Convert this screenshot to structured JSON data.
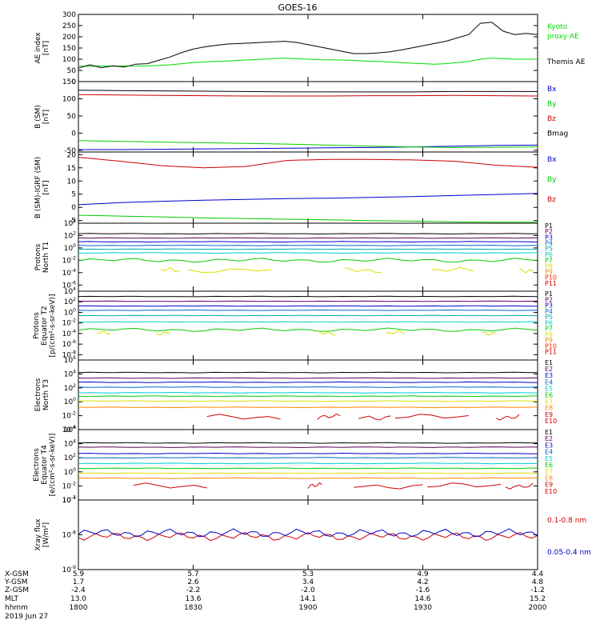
{
  "title": "GOES-16",
  "x_ticks": [
    "1800",
    "1830",
    "1900",
    "1930",
    "2000"
  ],
  "orbit_table": {
    "row_labels": [
      "X-GSM",
      "Y-GSM",
      "Z-GSM",
      "MLT",
      "hhmm",
      "2019 Jun 27"
    ],
    "columns": [
      [
        "5.9",
        "1.7",
        "-2.4",
        "13.0",
        "1800"
      ],
      [
        "5.7",
        "2.6",
        "-2.2",
        "13.6",
        "1830"
      ],
      [
        "5.3",
        "3.4",
        "-2.0",
        "14.1",
        "1900"
      ],
      [
        "4.9",
        "4.2",
        "-1.6",
        "14.6",
        "1930"
      ],
      [
        "4.4",
        "4.8",
        "-1.2",
        "15.2",
        "2000"
      ]
    ]
  },
  "chart_data": [
    {
      "type": "line",
      "ylabel": [
        "AE index",
        "[nT]"
      ],
      "ylim": [
        0,
        300
      ],
      "yticks": [
        "300",
        "250",
        "200",
        "150",
        "100",
        "50",
        "0"
      ],
      "x": [
        1800,
        1803,
        1806,
        1809,
        1812,
        1815,
        1818,
        1821,
        1824,
        1827,
        1830,
        1833,
        1836,
        1839,
        1842,
        1845,
        1848,
        1851,
        1854,
        1857,
        1900,
        1903,
        1906,
        1909,
        1912,
        1915,
        1918,
        1921,
        1924,
        1927,
        1930,
        1933,
        1936,
        1939,
        1942,
        1945,
        1948,
        1951,
        1954,
        1957,
        2000
      ],
      "series": [
        {
          "name": "Kyoto proxy AE",
          "color": "#00dd00",
          "values": [
            70,
            68,
            70,
            69,
            70,
            69,
            70,
            72,
            75,
            80,
            85,
            88,
            90,
            92,
            95,
            97,
            100,
            103,
            105,
            102,
            100,
            98,
            97,
            96,
            95,
            92,
            90,
            88,
            85,
            82,
            80,
            78,
            80,
            85,
            90,
            100,
            105,
            103,
            100,
            100,
            100
          ]
        },
        {
          "name": "Themis AE",
          "color": "#000000",
          "values": [
            60,
            75,
            62,
            70,
            65,
            78,
            80,
            95,
            110,
            130,
            145,
            155,
            162,
            168,
            170,
            172,
            175,
            178,
            180,
            175,
            165,
            155,
            145,
            135,
            125,
            125,
            128,
            132,
            140,
            150,
            160,
            170,
            180,
            195,
            210,
            260,
            265,
            225,
            210,
            215,
            210
          ]
        }
      ],
      "legend": [
        {
          "text": "Kyoto",
          "color": "#00dd00"
        },
        {
          "text": "proxy AE",
          "color": "#00dd00"
        },
        {
          "text": "Themis AE",
          "color": "#000000"
        }
      ]
    },
    {
      "type": "line",
      "ylabel": [
        "B (SM)",
        "[nT]"
      ],
      "ylim": [
        -55,
        150
      ],
      "yticks": [
        "150",
        "100",
        "50",
        "0",
        "-50"
      ],
      "series": [
        {
          "name": "Bx",
          "color": "#0000cc",
          "values": [
            -48,
            -48,
            -47,
            -46,
            -45,
            -44,
            -43,
            -42,
            -40,
            -38,
            -36,
            -35
          ]
        },
        {
          "name": "By",
          "color": "#00cc00",
          "values": [
            -22,
            -24,
            -26,
            -28,
            -30,
            -32,
            -35,
            -38,
            -40,
            -42,
            -41,
            -40
          ]
        },
        {
          "name": "Bz",
          "color": "#cc0000",
          "values": [
            112,
            111,
            110,
            109,
            108,
            108,
            108,
            109,
            109,
            110,
            109,
            108
          ]
        },
        {
          "name": "Bmag",
          "color": "#000000",
          "values": [
            125,
            124,
            123,
            122,
            121,
            120,
            120,
            120,
            120,
            121,
            121,
            121
          ]
        }
      ],
      "legend": [
        {
          "text": "Bx",
          "color": "#0000cc"
        },
        {
          "text": "By",
          "color": "#00cc00"
        },
        {
          "text": "Bz",
          "color": "#cc0000"
        },
        {
          "text": "Bmag",
          "color": "#000000"
        }
      ]
    },
    {
      "type": "line",
      "ylabel": [
        "B (SM)-IGRF (SM)",
        "[nT]"
      ],
      "ylim": [
        -6,
        21
      ],
      "yticks": [
        "20",
        "15",
        "10",
        "5",
        "0",
        "-5"
      ],
      "series": [
        {
          "name": "Bx",
          "color": "#0000cc",
          "values": [
            1,
            1.8,
            2.3,
            2.7,
            3.0,
            3.3,
            3.5,
            3.8,
            4.1,
            4.5,
            4.9,
            5.3
          ]
        },
        {
          "name": "By",
          "color": "#00cc00",
          "values": [
            -3,
            -3.3,
            -3.6,
            -4,
            -4.2,
            -4.5,
            -4.7,
            -5,
            -5.2,
            -5.5,
            -5.6,
            -5.6
          ]
        },
        {
          "name": "Bz",
          "color": "#cc0000",
          "values": [
            19,
            17.5,
            15.8,
            15,
            15.5,
            17.8,
            18.2,
            18.2,
            18,
            17.5,
            16,
            15.2
          ]
        }
      ],
      "legend": [
        {
          "text": "Bx",
          "color": "#0000cc"
        },
        {
          "text": "By",
          "color": "#00cc00"
        },
        {
          "text": "Bz",
          "color": "#cc0000"
        }
      ]
    },
    {
      "type": "line",
      "ylabel": [
        "Protons",
        "North T1"
      ],
      "yscale": "log",
      "ylim_exp": [
        -7,
        4
      ],
      "yticks": [
        "10^4",
        "10^2",
        "10^0",
        "10^-2",
        "10^-4",
        "10^-6"
      ],
      "channels": [
        {
          "name": "P1",
          "color": "#000000",
          "exp": 2.3
        },
        {
          "name": "P2",
          "color": "#5a005a",
          "exp": 1.6
        },
        {
          "name": "P3",
          "color": "#0000cc",
          "exp": 1.0
        },
        {
          "name": "P4",
          "color": "#0066cc",
          "exp": 0.4
        },
        {
          "name": "P5",
          "color": "#00aaaa",
          "exp": -0.2
        },
        {
          "name": "P6",
          "color": "#00cccc",
          "exp": -0.8
        },
        {
          "name": "P7",
          "color": "#00cc00",
          "exp": -2.0,
          "wavy": true
        },
        {
          "name": "P8",
          "color": "#dddd00",
          "exp": -3.6,
          "partial": true
        },
        {
          "name": "P9",
          "color": "#ff8800",
          "exp": null
        },
        {
          "name": "P10",
          "color": "#ff2200",
          "exp": null
        },
        {
          "name": "P11",
          "color": "#cc0000",
          "exp": null
        }
      ]
    },
    {
      "type": "line",
      "ylabel": [
        "Protons",
        "Equator T2",
        "[p/(cm²-s-sr-keV)]"
      ],
      "yscale": "log",
      "ylim_exp": [
        -9,
        4
      ],
      "yticks": [
        "10^4",
        "10^2",
        "10^0",
        "10^-2",
        "10^-4",
        "10^-6",
        "10^-8"
      ],
      "channels": [
        {
          "name": "P1",
          "color": "#000000",
          "exp": 3.0
        },
        {
          "name": "P2",
          "color": "#5a005a",
          "exp": 2.1
        },
        {
          "name": "P3",
          "color": "#0000cc",
          "exp": 1.2
        },
        {
          "name": "P4",
          "color": "#0066cc",
          "exp": 0.4
        },
        {
          "name": "P5",
          "color": "#00aaaa",
          "exp": -0.6
        },
        {
          "name": "P6",
          "color": "#00cccc",
          "exp": -1.8
        },
        {
          "name": "P7",
          "color": "#00cc00",
          "exp": -3.3,
          "wavy": true
        },
        {
          "name": "P8",
          "color": "#dddd00",
          "exp": -3.9,
          "partial": true
        },
        {
          "name": "P9",
          "color": "#ff8800",
          "exp": null
        },
        {
          "name": "P10",
          "color": "#ff2200",
          "exp": null
        },
        {
          "name": "P11",
          "color": "#cc0000",
          "exp": null
        }
      ]
    },
    {
      "type": "line",
      "ylabel": [
        "Electrons",
        "North T3"
      ],
      "yscale": "log",
      "ylim_exp": [
        -4,
        6
      ],
      "yticks": [
        "10^6",
        "10^4",
        "10^2",
        "10^0",
        "10^-2",
        "10^-4"
      ],
      "channels": [
        {
          "name": "E1",
          "color": "#000000",
          "exp": 4.2
        },
        {
          "name": "E2",
          "color": "#5a005a",
          "exp": 3.4
        },
        {
          "name": "E3",
          "color": "#0000cc",
          "exp": 2.8
        },
        {
          "name": "E4",
          "color": "#0066cc",
          "exp": 2.1
        },
        {
          "name": "E5",
          "color": "#00cccc",
          "exp": 1.3
        },
        {
          "name": "E6",
          "color": "#00cc00",
          "exp": 0.8
        },
        {
          "name": "E7",
          "color": "#dddd00",
          "exp": 0.1
        },
        {
          "name": "E8",
          "color": "#ff8800",
          "exp": -0.8
        },
        {
          "name": "E9",
          "color": "#cc0000",
          "exp": -2.2,
          "partial": true
        },
        {
          "name": "E10",
          "color": "#cc0000",
          "exp": null
        }
      ]
    },
    {
      "type": "line",
      "ylabel": [
        "Electrons",
        "Equator T4",
        "[e/(cm²-s-sr-keV)]"
      ],
      "yscale": "log",
      "ylim_exp": [
        -4,
        6
      ],
      "yticks": [
        "10^6",
        "10^4",
        "10^2",
        "10^0",
        "10^-2",
        "10^-4"
      ],
      "channels": [
        {
          "name": "E1",
          "color": "#000000",
          "exp": 4.1
        },
        {
          "name": "E2",
          "color": "#5a005a",
          "exp": 3.5
        },
        {
          "name": "E3",
          "color": "#0000cc",
          "exp": 2.6
        },
        {
          "name": "E4",
          "color": "#0066cc",
          "exp": 2.0
        },
        {
          "name": "E5",
          "color": "#00cccc",
          "exp": 1.2
        },
        {
          "name": "E6",
          "color": "#00cc00",
          "exp": 0.5
        },
        {
          "name": "E7",
          "color": "#dddd00",
          "exp": -0.2
        },
        {
          "name": "E8",
          "color": "#ff8800",
          "exp": -0.9
        },
        {
          "name": "E9",
          "color": "#cc0000",
          "exp": -2.0,
          "partial": true
        },
        {
          "name": "E10",
          "color": "#cc0000",
          "exp": null
        }
      ]
    },
    {
      "type": "line",
      "ylabel": [
        "Xray flux",
        "[W/m²]"
      ],
      "yscale": "log",
      "ylim_exp": [
        -9,
        -7
      ],
      "yticks": [
        "10^-7",
        "10^-8",
        "10^-9"
      ],
      "series": [
        {
          "name": "0.1-0.8 nm",
          "color": "#cc0000",
          "exp": -8.05
        },
        {
          "name": "0.05-0.4 nm",
          "color": "#0000cc",
          "exp": -7.95
        }
      ],
      "legend": [
        {
          "text": "0.1-0.8 nm",
          "color": "#cc0000"
        },
        {
          "text": "0.05-0.4 nm",
          "color": "#0000cc"
        }
      ]
    }
  ]
}
